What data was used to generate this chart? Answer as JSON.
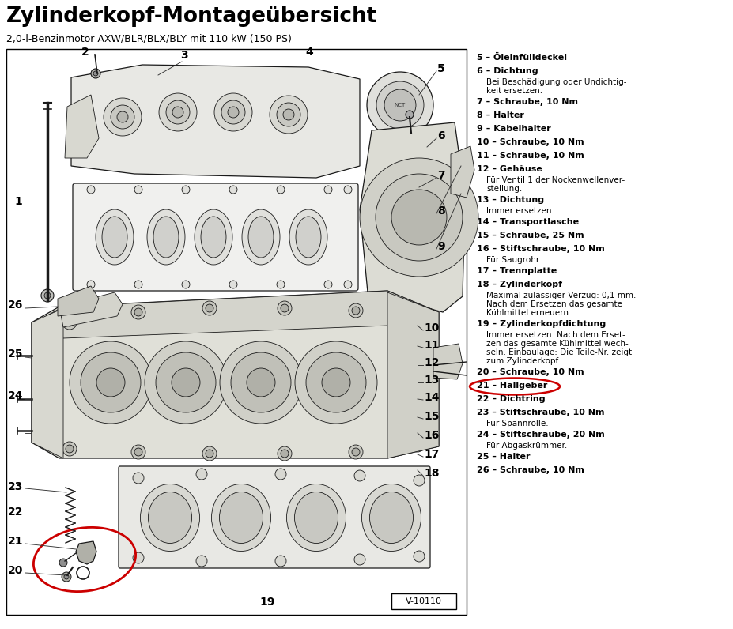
{
  "title": "Zylinderkopf-Montageübersicht",
  "subtitle": "2,0-l-Benzinmotor AXW/BLR/BLX/BLY mit 110 kW (150 PS)",
  "bg_color": "#ffffff",
  "text_color": "#000000",
  "legend_items": [
    {
      "num": "5",
      "bold": "Öleinfülldeckel",
      "detail": ""
    },
    {
      "num": "6",
      "bold": "Dichtung",
      "detail": "Bei Beschädigung oder Undichtig-\nkeit ersetzen."
    },
    {
      "num": "7",
      "bold": "Schraube, 10 Nm",
      "detail": ""
    },
    {
      "num": "8",
      "bold": "Halter",
      "detail": ""
    },
    {
      "num": "9",
      "bold": "Kabelhalter",
      "detail": ""
    },
    {
      "num": "10",
      "bold": "Schraube, 10 Nm",
      "detail": ""
    },
    {
      "num": "11",
      "bold": "Schraube, 10 Nm",
      "detail": ""
    },
    {
      "num": "12",
      "bold": "Gehäuse",
      "detail": "Für Ventil 1 der Nockenwellenver-\nstellung."
    },
    {
      "num": "13",
      "bold": "Dichtung",
      "detail": "Immer ersetzen."
    },
    {
      "num": "14",
      "bold": "Transportlasche",
      "detail": ""
    },
    {
      "num": "15",
      "bold": "Schraube, 25 Nm",
      "detail": ""
    },
    {
      "num": "16",
      "bold": "Stiftschraube, 10 Nm",
      "detail": "Für Saugrohr."
    },
    {
      "num": "17",
      "bold": "Trennplatte",
      "detail": ""
    },
    {
      "num": "18",
      "bold": "Zylinderkopf",
      "detail": "Maximal zulässiger Verzug: 0,1 mm.\nNach dem Ersetzen das gesamte\nKühlmittel erneuern."
    },
    {
      "num": "19",
      "bold": "Zylinderkopfdichtung",
      "detail": "Immer ersetzen. Nach dem Erset-\nzen das gesamte Kühlmittel wech-\nseln. Einbaulage: Die Teile-Nr. zeigt\nzum Zylinderkopf."
    },
    {
      "num": "20",
      "bold": "Schraube, 10 Nm",
      "detail": ""
    },
    {
      "num": "21",
      "bold": "Hallgeber",
      "detail": "",
      "highlighted": true
    },
    {
      "num": "22",
      "bold": "Dichtring",
      "detail": ""
    },
    {
      "num": "23",
      "bold": "Stiftschraube, 10 Nm",
      "detail": "Für Spannrolle."
    },
    {
      "num": "24",
      "bold": "Stiftschraube, 20 Nm",
      "detail": "Für Abgaskrümmer."
    },
    {
      "num": "25",
      "bold": "Halter",
      "detail": ""
    },
    {
      "num": "26",
      "bold": "Schraube, 10 Nm",
      "detail": ""
    }
  ],
  "box_label": "V-10110",
  "circle_color": "#cc0000",
  "fig_w": 9.28,
  "fig_h": 7.96,
  "dpi": 100,
  "title_fontsize": 19,
  "subtitle_fontsize": 9,
  "legend_bold_fontsize": 8,
  "legend_detail_fontsize": 7.5,
  "num_label_fontsize": 10
}
